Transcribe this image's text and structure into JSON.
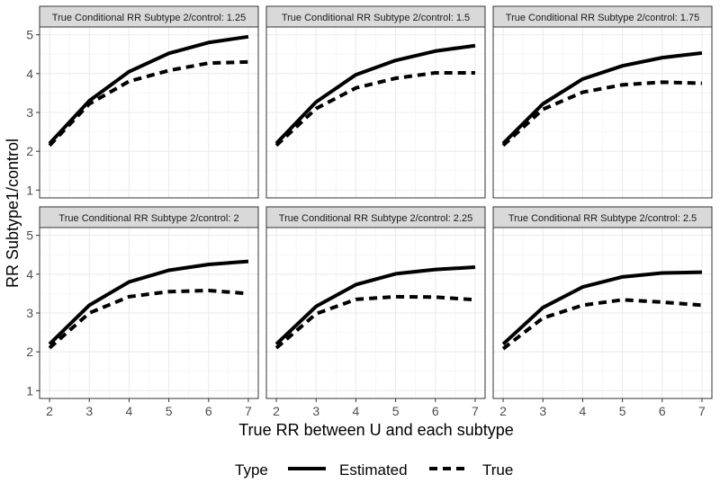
{
  "chart_data": {
    "type": "line",
    "xlabel": "True RR between U and each subtype",
    "ylabel": "RR Subtype1/control",
    "x": [
      2,
      3,
      4,
      5,
      6,
      7
    ],
    "xlim": [
      2,
      7
    ],
    "ylim": [
      1,
      5
    ],
    "xticks": [
      2,
      3,
      4,
      5,
      6,
      7
    ],
    "yticks": [
      1,
      2,
      3,
      4,
      5
    ],
    "grid": true,
    "legend": {
      "title": "Type",
      "position": "bottom",
      "entries": [
        {
          "name": "Estimated",
          "linetype": "solid"
        },
        {
          "name": "True",
          "linetype": "dashed"
        }
      ]
    },
    "facets": [
      {
        "label": "True Conditional RR Subtype 2/control: 1.25",
        "series": [
          {
            "name": "Estimated",
            "values": [
              2.2,
              3.3,
              4.05,
              4.52,
              4.8,
              4.95
            ]
          },
          {
            "name": "True",
            "values": [
              2.15,
              3.22,
              3.8,
              4.08,
              4.27,
              4.3
            ]
          }
        ]
      },
      {
        "label": "True Conditional RR Subtype 2/control: 1.5",
        "series": [
          {
            "name": "Estimated",
            "values": [
              2.2,
              3.27,
              3.97,
              4.34,
              4.58,
              4.72
            ]
          },
          {
            "name": "True",
            "values": [
              2.15,
              3.1,
              3.63,
              3.88,
              4.02,
              4.02
            ]
          }
        ]
      },
      {
        "label": "True Conditional RR Subtype 2/control: 1.75",
        "series": [
          {
            "name": "Estimated",
            "values": [
              2.2,
              3.22,
              3.86,
              4.2,
              4.41,
              4.53
            ]
          },
          {
            "name": "True",
            "values": [
              2.15,
              3.08,
              3.52,
              3.71,
              3.78,
              3.75
            ]
          }
        ]
      },
      {
        "label": "True Conditional RR Subtype 2/control: 2",
        "series": [
          {
            "name": "Estimated",
            "values": [
              2.2,
              3.2,
              3.8,
              4.1,
              4.25,
              4.33
            ]
          },
          {
            "name": "True",
            "values": [
              2.1,
              3.0,
              3.42,
              3.55,
              3.58,
              3.5
            ]
          }
        ]
      },
      {
        "label": "True Conditional RR Subtype 2/control: 2.25",
        "series": [
          {
            "name": "Estimated",
            "values": [
              2.2,
              3.17,
              3.73,
              4.01,
              4.12,
              4.18
            ]
          },
          {
            "name": "True",
            "values": [
              2.1,
              2.98,
              3.35,
              3.42,
              3.41,
              3.34
            ]
          }
        ]
      },
      {
        "label": "True Conditional RR Subtype 2/control: 2.5",
        "series": [
          {
            "name": "Estimated",
            "values": [
              2.2,
              3.14,
              3.67,
              3.93,
              4.03,
              4.05
            ]
          },
          {
            "name": "True",
            "values": [
              2.08,
              2.87,
              3.2,
              3.34,
              3.28,
              3.2
            ]
          }
        ]
      }
    ]
  }
}
